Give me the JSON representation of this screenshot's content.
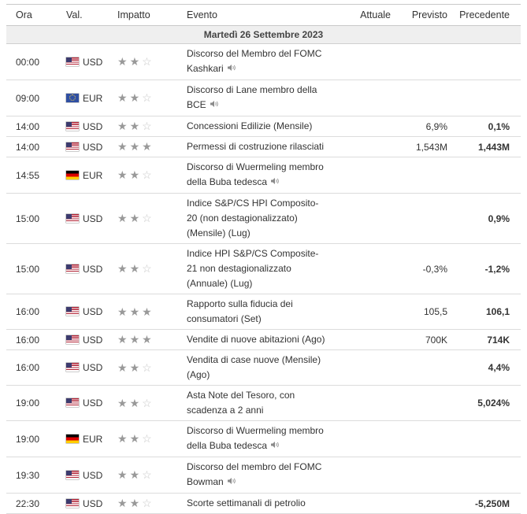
{
  "headers": {
    "time": "Ora",
    "currency": "Val.",
    "impact": "Impatto",
    "event": "Evento",
    "actual": "Attuale",
    "forecast": "Previsto",
    "previous": "Precedente"
  },
  "date_label": "Martedì 26 Settembre 2023",
  "rows": [
    {
      "time": "00:00",
      "flag": "us-flag-icon",
      "currency": "USD",
      "impact": 2,
      "event_lines": [
        "Discorso del Membro del FOMC",
        "Kashkari"
      ],
      "speaker": true,
      "actual": "",
      "forecast": "",
      "previous": ""
    },
    {
      "time": "09:00",
      "flag": "eu-flag-icon",
      "currency": "EUR",
      "impact": 2,
      "event_lines": [
        "Discorso di Lane membro della",
        "BCE"
      ],
      "speaker": true,
      "actual": "",
      "forecast": "",
      "previous": ""
    },
    {
      "time": "14:00",
      "flag": "us-flag-icon",
      "currency": "USD",
      "impact": 2,
      "event_lines": [
        "Concessioni Edilizie (Mensile)"
      ],
      "speaker": false,
      "actual": "",
      "forecast": "6,9%",
      "previous": "0,1%"
    },
    {
      "time": "14:00",
      "flag": "us-flag-icon",
      "currency": "USD",
      "impact": 3,
      "event_lines": [
        "Permessi di costruzione rilasciati"
      ],
      "speaker": false,
      "actual": "",
      "forecast": "1,543M",
      "previous": "1,443M"
    },
    {
      "time": "14:55",
      "flag": "de-flag-icon",
      "currency": "EUR",
      "impact": 2,
      "event_lines": [
        "Discorso di Wuermeling membro",
        "della Buba tedesca"
      ],
      "speaker": true,
      "actual": "",
      "forecast": "",
      "previous": ""
    },
    {
      "time": "15:00",
      "flag": "us-flag-icon",
      "currency": "USD",
      "impact": 2,
      "event_lines": [
        "Indice S&P/CS HPI Composito-",
        "20 (non destagionalizzato)",
        "(Mensile) (Lug)"
      ],
      "speaker": false,
      "actual": "",
      "forecast": "",
      "previous": "0,9%"
    },
    {
      "time": "15:00",
      "flag": "us-flag-icon",
      "currency": "USD",
      "impact": 2,
      "event_lines": [
        "Indice HPI S&P/CS Composite-",
        "21 non destagionalizzato",
        "(Annuale) (Lug)"
      ],
      "speaker": false,
      "actual": "",
      "forecast": "-0,3%",
      "previous": "-1,2%"
    },
    {
      "time": "16:00",
      "flag": "us-flag-icon",
      "currency": "USD",
      "impact": 3,
      "event_lines": [
        "Rapporto sulla fiducia dei",
        "consumatori (Set)"
      ],
      "speaker": false,
      "actual": "",
      "forecast": "105,5",
      "previous": "106,1"
    },
    {
      "time": "16:00",
      "flag": "us-flag-icon",
      "currency": "USD",
      "impact": 3,
      "event_lines": [
        "Vendite di nuove abitazioni (Ago)"
      ],
      "speaker": false,
      "actual": "",
      "forecast": "700K",
      "previous": "714K"
    },
    {
      "time": "16:00",
      "flag": "us-flag-icon",
      "currency": "USD",
      "impact": 2,
      "event_lines": [
        "Vendita di case nuove (Mensile)",
        "(Ago)"
      ],
      "speaker": false,
      "actual": "",
      "forecast": "",
      "previous": "4,4%"
    },
    {
      "time": "19:00",
      "flag": "us-flag-icon",
      "currency": "USD",
      "impact": 2,
      "event_lines": [
        "Asta Note del Tesoro, con",
        "scadenza a 2 anni"
      ],
      "speaker": false,
      "actual": "",
      "forecast": "",
      "previous": "5,024%"
    },
    {
      "time": "19:00",
      "flag": "de-flag-icon",
      "currency": "EUR",
      "impact": 2,
      "event_lines": [
        "Discorso di Wuermeling membro",
        "della Buba tedesca"
      ],
      "speaker": true,
      "actual": "",
      "forecast": "",
      "previous": ""
    },
    {
      "time": "19:30",
      "flag": "us-flag-icon",
      "currency": "USD",
      "impact": 2,
      "event_lines": [
        "Discorso del membro del FOMC",
        "Bowman"
      ],
      "speaker": true,
      "actual": "",
      "forecast": "",
      "previous": ""
    },
    {
      "time": "22:30",
      "flag": "us-flag-icon",
      "currency": "USD",
      "impact": 2,
      "event_lines": [
        "Scorte settimanali di petrolio"
      ],
      "speaker": false,
      "actual": "",
      "forecast": "",
      "previous": "-5,250M"
    }
  ]
}
